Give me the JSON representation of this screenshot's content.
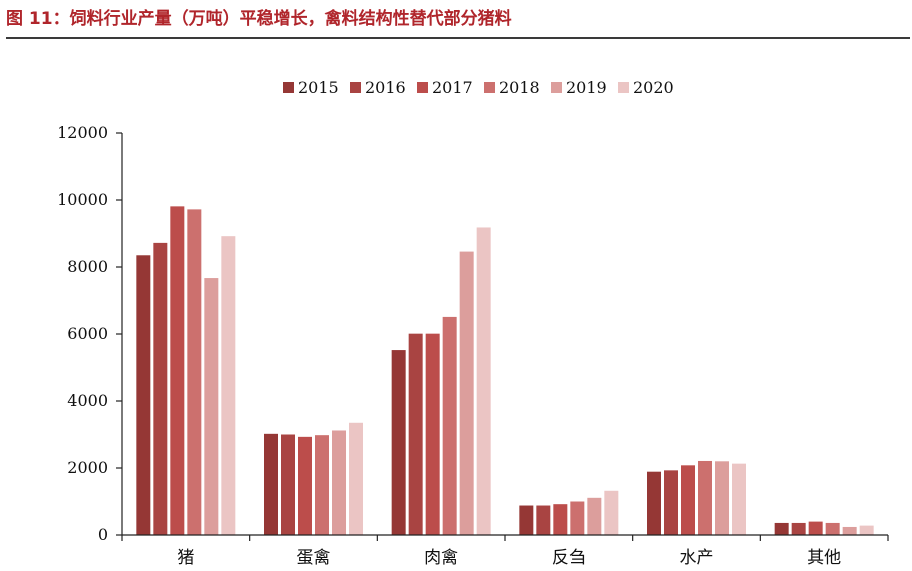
{
  "figure": {
    "title": "图 11：饲料行业产量（万吨）平稳增长，禽料结构性替代部分猪料"
  },
  "chart_data": {
    "type": "bar",
    "title": "图 11：饲料行业产量（万吨）平稳增长，禽料结构性替代部分猪料",
    "xlabel": "",
    "ylabel": "",
    "ylim": [
      0,
      12000
    ],
    "yticks": [
      0,
      2000,
      4000,
      6000,
      8000,
      10000,
      12000
    ],
    "grid": false,
    "legend_position": "top-center",
    "categories": [
      "猪",
      "蛋禽",
      "肉禽",
      "反刍",
      "水产",
      "其他"
    ],
    "series": [
      {
        "name": "2015",
        "color": "#953735",
        "values": [
          8350,
          3020,
          5520,
          880,
          1890,
          360
        ]
      },
      {
        "name": "2016",
        "color": "#a94442",
        "values": [
          8720,
          3000,
          6010,
          880,
          1930,
          360
        ]
      },
      {
        "name": "2017",
        "color": "#bc4d4b",
        "values": [
          9810,
          2930,
          6010,
          920,
          2080,
          400
        ]
      },
      {
        "name": "2018",
        "color": "#cc706e",
        "values": [
          9720,
          2980,
          6510,
          1000,
          2210,
          360
        ]
      },
      {
        "name": "2019",
        "color": "#dc9e9c",
        "values": [
          7670,
          3120,
          8460,
          1110,
          2200,
          240
        ]
      },
      {
        "name": "2020",
        "color": "#ebc5c4",
        "values": [
          8920,
          3350,
          9180,
          1320,
          2130,
          280
        ]
      }
    ]
  }
}
